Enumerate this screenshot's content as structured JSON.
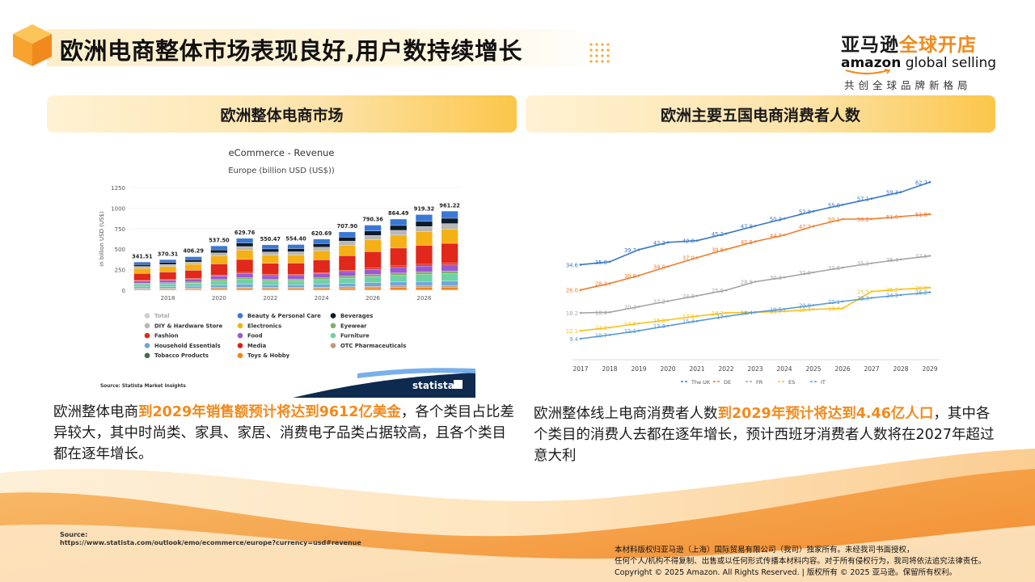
{
  "header": {
    "title": "欧洲电商整体市场表现良好,用户数持续增长"
  },
  "brand": {
    "cn_part1": "亚马逊",
    "cn_part2": "全球开店",
    "en_bold": "amazon",
    "en_light": " global selling",
    "slogan": "共创全球品牌新格局"
  },
  "sections": {
    "left_heading": "欧洲整体电商市场",
    "right_heading": "欧洲主要五国电商消费者人数"
  },
  "left_desc": {
    "pre": "欧洲整体电商",
    "highlight": "到2029年销售额预计将达到9612亿美金",
    "post": "，各个类目占比差异较大，其中时尚类、家具、家居、消费电子品类占据较高，且各个类目都在逐年增长。"
  },
  "right_desc": {
    "pre": "欧洲整体线上电商消费者人数",
    "highlight": "到2029年预计将达到4.46亿人口",
    "post": "，其中各个类目的消费人去都在逐年增长，预计西班牙消费者人数将在2027年超过意大利"
  },
  "footer": {
    "source_label": "Source:",
    "source_url": "https://www.statista.com/outlook/emo/ecommerce/europe?currency=usd#revenue",
    "copyright_line1": "本材料版权归亚马逊（上海）国际贸易有限公司（我司）独家所有。未经我司书面授权，",
    "copyright_line2": "任何个人/机构不得复制、出售或以任何形式传播本材料内容。对于所有侵权行为，我司将依法追究法律责任。",
    "copyright_line3": "Copyright © 2025 Amazon. All Rights Reserved. | 版权所有 © 2025 亚马逊。保留所有权利。"
  },
  "colors": {
    "accent": "#f28a1c",
    "heading_gradient_end": "#fbc64a"
  },
  "chart_data": [
    {
      "type": "bar",
      "stacked": true,
      "title": "eCommerce - Revenue",
      "subtitle": "Europe (billion USD (US$))",
      "ylabel": "in billion USD (US$)",
      "ylim": [
        0,
        1250
      ],
      "yticks": [
        0,
        250,
        500,
        750,
        1000,
        1250
      ],
      "categories": [
        "2017",
        "2018",
        "2019",
        "2020",
        "2021",
        "2022",
        "2023",
        "2024",
        "2025",
        "2026",
        "2027",
        "2028",
        "2029"
      ],
      "x_tick_labels": [
        "2018",
        "2020",
        "2022",
        "2024",
        "2026",
        "2028"
      ],
      "totals": [
        341.51,
        370.31,
        406.29,
        537.5,
        629.76,
        550.47,
        554.4,
        620.69,
        707.9,
        790.36,
        864.49,
        919.32,
        961.22
      ],
      "total_labels": [
        "341.51",
        "370.31",
        "406.29",
        "537.50",
        "629.76",
        "550.47",
        "554.40",
        "620.69",
        "707.90",
        "790.36",
        "864.49",
        "919.32",
        "961.22"
      ],
      "segment_order_bottom_to_top": [
        "Toys & Hobby",
        "OTC Pharmaceuticals",
        "Household Essentials",
        "Furniture",
        "Eyewear",
        "Food",
        "Media",
        "Fashion",
        "Electronics",
        "DIY & Hardware Store",
        "Beverages",
        "Beauty & Personal Care"
      ],
      "segment_shares": [
        0.03,
        0.02,
        0.05,
        0.08,
        0.03,
        0.07,
        0.02,
        0.22,
        0.16,
        0.06,
        0.06,
        0.08
      ],
      "legend": [
        {
          "name": "Total",
          "color": "#cfcfcf"
        },
        {
          "name": "Beauty & Personal Care",
          "color": "#3a78d4"
        },
        {
          "name": "Beverages",
          "color": "#0d1b2a"
        },
        {
          "name": "DIY & Hardware Store",
          "color": "#b8b8b8"
        },
        {
          "name": "Electronics",
          "color": "#f5b016"
        },
        {
          "name": "Eyewear",
          "color": "#7fb069"
        },
        {
          "name": "Fashion",
          "color": "#e0281b"
        },
        {
          "name": "Food",
          "color": "#9b59d0"
        },
        {
          "name": "Furniture",
          "color": "#6fd1a6"
        },
        {
          "name": "Household Essentials",
          "color": "#6ea8dc"
        },
        {
          "name": "Media",
          "color": "#d8231a"
        },
        {
          "name": "OTC Pharmaceuticals",
          "color": "#c49a7a"
        },
        {
          "name": "Tobacco Products",
          "color": "#3c6e47"
        },
        {
          "name": "Toys & Hobby",
          "color": "#f2841c"
        }
      ],
      "source": "Source: Statista Market Insights",
      "logo": "statista"
    },
    {
      "type": "line",
      "x": [
        "2017",
        "2018",
        "2019",
        "2020",
        "2021",
        "2022",
        "2023",
        "2024",
        "2025",
        "2026",
        "2027",
        "2028",
        "2029"
      ],
      "ylim": [
        5,
        65
      ],
      "series": [
        {
          "name": "The UK",
          "color": "#3a78c8",
          "values": [
            34.6,
            35.6,
            39.7,
            42.2,
            42.8,
            45.2,
            47.8,
            50.3,
            52.8,
            55.0,
            57.1,
            59.3,
            62.7
          ],
          "labels": [
            "34.6",
            "35.6",
            "39.7",
            "42.2",
            "42.8",
            "45.2",
            "47.8",
            "50.3",
            "52.8",
            "55.0",
            "57.1",
            "59.3",
            "62.7"
          ]
        },
        {
          "name": "DE",
          "color": "#ee7d2e",
          "values": [
            26.0,
            28.2,
            30.9,
            34.0,
            37.0,
            39.8,
            42.5,
            44.7,
            47.7,
            50.1,
            50.2,
            51.0,
            51.8
          ],
          "labels": [
            "26.0",
            "28.2",
            "30.9",
            "34.0",
            "37.0",
            "39.8",
            "42.5",
            "44.7",
            "47.7",
            "50.1",
            "50.2",
            "51.0",
            "51.8"
          ]
        },
        {
          "name": "FR",
          "color": "#a6a6a6",
          "values": [
            18.2,
            18.4,
            20.3,
            22.2,
            24.0,
            25.9,
            28.8,
            30.3,
            32.0,
            33.6,
            35.1,
            36.4,
            37.6
          ],
          "labels": [
            "18.2",
            "18.4",
            "20.3",
            "22.2",
            "24.0",
            "25.9",
            "28.8",
            "30.3",
            "32.0",
            "33.6",
            "35.1",
            "36.4",
            "37.6"
          ]
        },
        {
          "name": "ES",
          "color": "#f7c21a",
          "values": [
            12.1,
            13.2,
            14.6,
            15.8,
            17.1,
            18.2,
            18.4,
            18.7,
            19.4,
            19.7,
            25.5,
            26.2,
            26.8
          ],
          "labels": [
            "12.1",
            "13.2",
            "14.6",
            "15.8",
            "17.1",
            "18.2",
            "",
            "18.7",
            "19.4",
            "19.7",
            "25.5",
            "26.2",
            "26.8"
          ]
        },
        {
          "name": "IT",
          "color": "#5a9bd6",
          "values": [
            9.4,
            10.7,
            12.1,
            13.8,
            15.4,
            17.0,
            18.4,
            19.5,
            20.8,
            22.1,
            23.3,
            24.3,
            25.2
          ],
          "labels": [
            "9.4",
            "10.7",
            "12.1",
            "13.8",
            "15.4",
            "17",
            "18.4",
            "19.5",
            "20.8",
            "22.1",
            "23.3",
            "24.3",
            "25.2"
          ]
        }
      ]
    }
  ]
}
